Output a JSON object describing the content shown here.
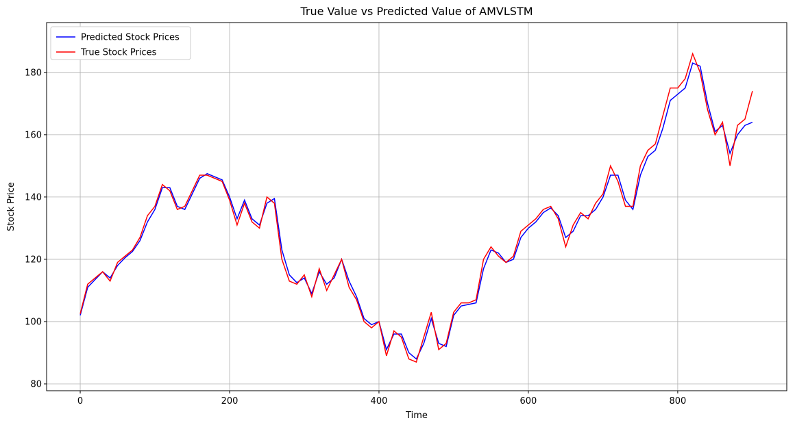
{
  "chart_data": {
    "type": "line",
    "title": "True Value vs Predicted Value of AMVLSTM",
    "x_label": "Time",
    "y_label": "Stock Price",
    "x": [
      0,
      10,
      20,
      30,
      40,
      50,
      60,
      70,
      80,
      90,
      100,
      110,
      120,
      130,
      140,
      150,
      160,
      170,
      180,
      190,
      200,
      210,
      220,
      230,
      240,
      250,
      260,
      270,
      280,
      290,
      300,
      310,
      320,
      330,
      340,
      350,
      360,
      370,
      380,
      390,
      400,
      410,
      420,
      430,
      440,
      450,
      460,
      470,
      480,
      490,
      500,
      510,
      520,
      530,
      540,
      550,
      560,
      570,
      580,
      590,
      600,
      610,
      620,
      630,
      640,
      650,
      660,
      670,
      680,
      690,
      700,
      710,
      720,
      730,
      740,
      750,
      760,
      770,
      780,
      790,
      800,
      810,
      820,
      830,
      840,
      850,
      860,
      870,
      880,
      890,
      900
    ],
    "series": [
      {
        "name": "Predicted Stock Prices",
        "color": "#0000ff",
        "values": [
          102,
          111,
          113.5,
          116,
          114,
          118,
          120.5,
          122.5,
          126,
          132,
          136,
          143,
          143,
          137,
          136,
          141,
          146,
          147.5,
          146.5,
          145.5,
          140,
          133,
          139,
          133,
          131,
          138,
          139.5,
          123,
          115,
          112.5,
          114,
          109,
          116,
          112,
          114,
          120,
          113,
          108,
          101,
          99,
          100,
          91,
          96,
          96,
          90,
          88,
          93,
          101,
          93,
          92,
          102,
          105,
          105.5,
          106,
          117,
          123,
          122,
          119,
          120,
          127,
          130,
          132,
          135,
          136.5,
          134,
          127,
          129,
          134,
          134,
          136,
          140,
          147,
          147,
          139,
          136,
          147,
          153,
          155,
          162,
          171,
          173,
          175,
          183,
          182,
          170,
          161,
          163,
          154,
          160,
          163,
          164
        ]
      },
      {
        "name": "True Stock Prices",
        "color": "#ff0000",
        "values": [
          102.5,
          112,
          114,
          116,
          113,
          119,
          121,
          123,
          127,
          134,
          137,
          144,
          142,
          136,
          137,
          142,
          147,
          147,
          146,
          145,
          139,
          131,
          138,
          132,
          130,
          140,
          138,
          120,
          113,
          112,
          115,
          108,
          117,
          110,
          115,
          120,
          111,
          107,
          100,
          98,
          100,
          89,
          97,
          95,
          88,
          87,
          95,
          103,
          91,
          93,
          103,
          106,
          106,
          107,
          120,
          124,
          121,
          119,
          121,
          129,
          131,
          133,
          136,
          137,
          133,
          124,
          131,
          135,
          133,
          138,
          141,
          150,
          145,
          137,
          137,
          150,
          155,
          157,
          166,
          175,
          175,
          178,
          186,
          180,
          168,
          160,
          164,
          150,
          163,
          165,
          174
        ]
      }
    ],
    "xlim": [
      -45,
      946
    ],
    "ylim": [
      77.8,
      196
    ],
    "xticks": [
      0,
      200,
      400,
      600,
      800
    ],
    "yticks": [
      80,
      100,
      120,
      140,
      160,
      180
    ],
    "grid": true,
    "legend": "upper left"
  }
}
